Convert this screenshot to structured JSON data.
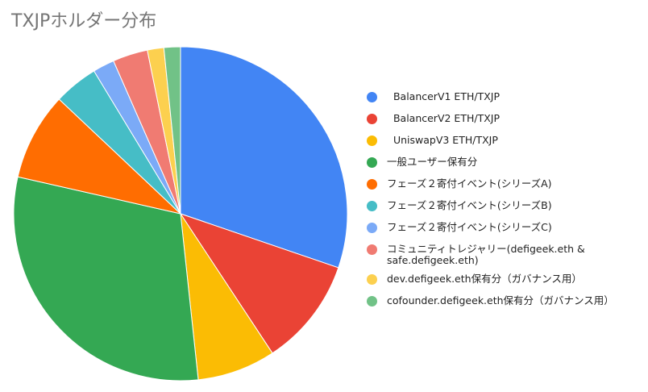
{
  "chart_data": {
    "type": "pie",
    "title": "TXJPホルダー分布",
    "legend_position": "right",
    "slices": [
      {
        "label": "  BalancerV1 ETH/TXJP",
        "value": 30.3,
        "color": "#4285f4"
      },
      {
        "label": "  BalancerV2 ETH/TXJP",
        "value": 10.5,
        "color": "#ea4335"
      },
      {
        "label": "  UniswapV3 ETH/TXJP",
        "value": 7.6,
        "color": "#fbbc04"
      },
      {
        "label": "一般ユーザー保有分",
        "value": 30.3,
        "color": "#34a853"
      },
      {
        "label": "フェーズ２寄付イベント(シリーズA)",
        "value": 8.5,
        "color": "#ff6d01"
      },
      {
        "label": "フェーズ２寄付イベント(シリーズB)",
        "value": 4.3,
        "color": "#46bdc6"
      },
      {
        "label": "フェーズ２寄付イベント(シリーズC)",
        "value": 2.1,
        "color": "#7baaf7"
      },
      {
        "label": "コミュニティトレジャリー(defigeek.eth & safe.defigeek.eth)",
        "value": 3.4,
        "color": "#f07b72"
      },
      {
        "label": "dev.defigeek.eth保有分（ガバナンス用）",
        "value": 1.6,
        "color": "#fcd04f"
      },
      {
        "label": "cofounder.defigeek.eth保有分（ガバナンス用）",
        "value": 1.6,
        "color": "#71c287"
      }
    ]
  }
}
